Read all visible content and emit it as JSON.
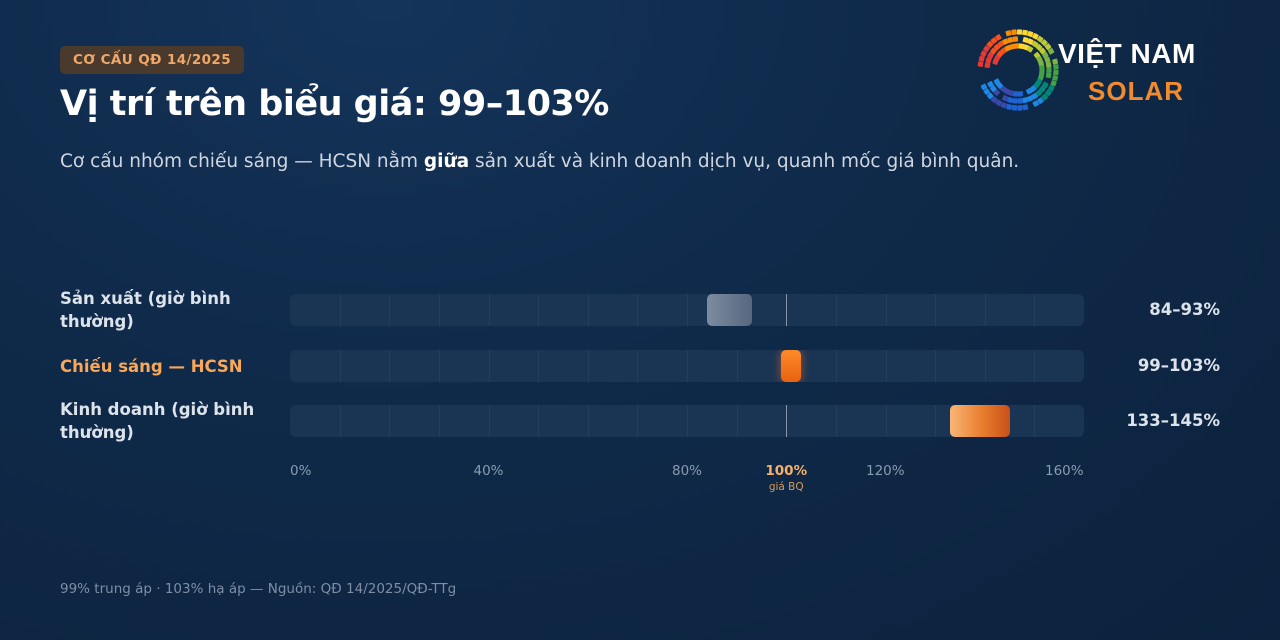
{
  "header": {
    "badge": "CƠ CẤU QĐ 14/2025",
    "title": "Vị trí trên biểu giá: 99–103%",
    "subtitle_pre": "Cơ cấu nhóm chiếu sáng — HCSN nằm ",
    "subtitle_bold": "giữa",
    "subtitle_post": " sản xuất và kinh doanh dịch vụ, quanh mốc giá bình quân."
  },
  "logo": {
    "line1": "VIỆT NAM",
    "line2": "SOLAR"
  },
  "colors": {
    "accent": "#f28a2e",
    "highlight_text": "#f7a85a",
    "neutral_range": "#6b7c92",
    "track": "#1a3454"
  },
  "chart_data": {
    "type": "bar",
    "orientation": "horizontal-range",
    "xlim": [
      0,
      160
    ],
    "x_ticks": [
      0,
      40,
      80,
      100,
      120,
      160
    ],
    "x_tick_labels": [
      "0%",
      "40%",
      "80%",
      "100%",
      "120%",
      "160%"
    ],
    "reference": {
      "value": 100,
      "label": "100%",
      "sublabel": "giá BQ"
    },
    "series": [
      {
        "category": "Sản xuất (giờ bình thường)",
        "low": 84,
        "high": 93,
        "value_label": "84–93%",
        "highlight": false,
        "style": "neutral"
      },
      {
        "category": "Chiếu sáng — HCSN",
        "low": 99,
        "high": 103,
        "value_label": "99–103%",
        "highlight": true,
        "style": "accent"
      },
      {
        "category": "Kinh doanh (giờ bình thường)",
        "low": 133,
        "high": 145,
        "value_label": "133–145%",
        "highlight": false,
        "style": "warm"
      }
    ]
  },
  "footer": {
    "note": "99% trung áp · 103% hạ áp — Nguồn: QĐ 14/2025/QĐ-TTg"
  }
}
